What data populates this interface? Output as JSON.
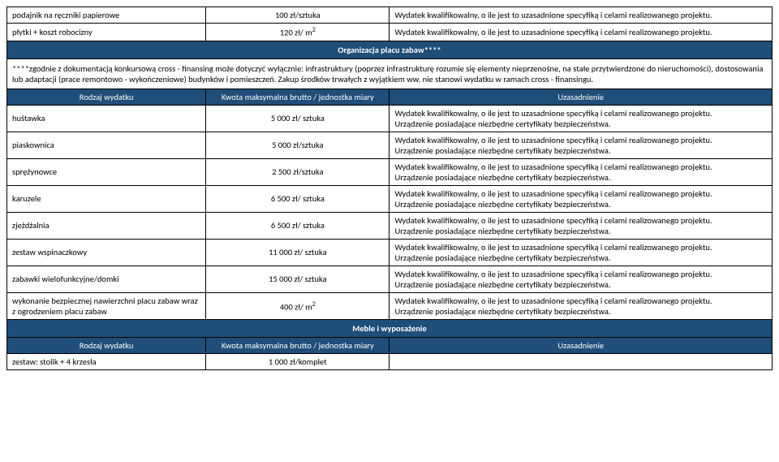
{
  "topRows": [
    {
      "name": "podajnik na ręczniki papierowe",
      "price": "100 zł/sztuka",
      "desc": "Wydatek kwalifikowalny, o ile jest to uzasadnione specyfiką i celami realizowanego projektu."
    },
    {
      "name": "płytki + koszt robocizny",
      "price": "120 zł/ m",
      "sup": "2",
      "desc": "Wydatek kwalifikowalny, o ile jest to uzasadnione specyfiką i celami realizowanego projektu."
    }
  ],
  "section1": {
    "title": "Organizacja placu zabaw****",
    "note": "****zgodnie z dokumentacją konkursową cross - finansing może dotyczyć wyłącznie: infrastruktury (poprzez infrastrukturę rozumie się elementy nieprzenośne, na stałe przytwierdzone do nieruchomości), dostosowania lub adaptacji (prace remontowo - wykończeniowe) budynków i pomieszczeń. Zakup środków trwałych z wyjątkiem ww. nie stanowi wydatku w ramach cross - finansingu.",
    "headers": {
      "c1": "Rodzaj wydatku",
      "c2": "Kwota maksymalna brutto / jednostka miary",
      "c3": "Uzasadnienie"
    },
    "rows": [
      {
        "name": "huśtawka",
        "price": "5 000 zł/ sztuka",
        "d1": "Wydatek kwalifikowalny, o ile jest to uzasadnione specyfiką i celami realizowanego projektu.",
        "d2": "Urządzenie posiadające niezbędne certyfikaty bezpieczeństwa."
      },
      {
        "name": "piaskownica",
        "price": "5 000 zł/sztuka",
        "d1": "Wydatek kwalifikowalny, o ile jest to uzasadnione specyfiką i celami realizowanego projektu.",
        "d2": "Urządzenie posiadające niezbędne certyfikaty bezpieczeństwa."
      },
      {
        "name": "sprężynowce",
        "price": "2 500 zł/sztuka",
        "d1": "Wydatek kwalifikowalny, o ile jest to uzasadnione specyfiką i celami realizowanego projektu.",
        "d2": "Urządzenie posiadające niezbędne certyfikaty bezpieczeństwa."
      },
      {
        "name": "karuzele",
        "price": "6 500 zł/ sztuka",
        "d1": "Wydatek kwalifikowalny, o ile jest to uzasadnione specyfiką i celami realizowanego projektu.",
        "d2": "Urządzenie posiadające niezbędne certyfikaty bezpieczeństwa."
      },
      {
        "name": "zjeżdżalnia",
        "price": "6 500 zł/ sztuka",
        "d1": "Wydatek kwalifikowalny, o ile jest to uzasadnione specyfiką i celami realizowanego projektu.",
        "d2": "Urządzenie posiadające niezbędne certyfikaty bezpieczeństwa."
      },
      {
        "name": "zestaw wspinaczkowy",
        "price": "11 000 zł/ sztuka",
        "d1": "Wydatek kwalifikowalny, o ile jest to uzasadnione specyfiką i celami realizowanego projektu.",
        "d2": "Urządzenie posiadające niezbędne certyfikaty bezpieczeństwa."
      },
      {
        "name": "zabawki wielofunkcyjne/domki",
        "price": "15 000 zł/ sztuka",
        "d1": "Wydatek kwalifikowalny, o ile jest to uzasadnione specyfiką i celami realizowanego projektu.",
        "d2": "Urządzenie posiadające niezbędne certyfikaty bezpieczeństwa."
      },
      {
        "name": "wykonanie bezpiecznej nawierzchni placu zabaw wraz z ogrodzeniem placu zabaw",
        "price": "400 zł/ m",
        "sup": "2",
        "d1": "Wydatek kwalifikowalny, o ile jest to uzasadnione specyfiką i celami realizowanego projektu.",
        "d2": "Urządzenie posiadające niezbędne certyfikaty bezpieczeństwa."
      }
    ]
  },
  "section2": {
    "title": "Meble i wyposażenie",
    "headers": {
      "c1": "Rodzaj wydatku",
      "c2": "Kwota maksymalna brutto / jednostka miary",
      "c3": "Uzasadnienie"
    },
    "rows": [
      {
        "name": "zestaw: stolik + 4 krzesła",
        "price": "1 000 zł/komplet"
      }
    ]
  }
}
